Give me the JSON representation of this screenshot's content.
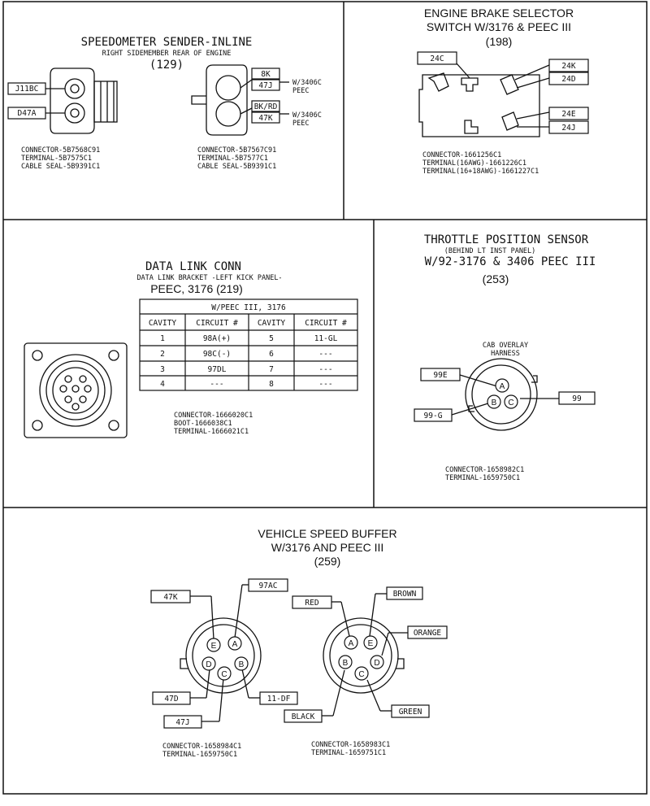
{
  "speedometer": {
    "title": "SPEEDOMETER SENDER-INLINE",
    "subtitle": "RIGHT SIDEMEMBER  REAR OF ENGINE",
    "ref": "(129)",
    "left_wires": [
      "J11BC",
      "D47A"
    ],
    "right_wires": [
      "8K",
      "47J",
      "BK/RD",
      "47K"
    ],
    "note1": "W/3406C",
    "note1b": "PEEC",
    "note2": "W/3406C",
    "note2b": "PEEC",
    "left_parts": [
      "CONNECTOR-5B7568C91",
      "TERMINAL-5B7575C1",
      "CABLE SEAL-5B9391C1"
    ],
    "right_parts": [
      "CONNECTOR-5B7567C91",
      "TERMINAL-5B7577C1",
      "CABLE SEAL-5B9391C1"
    ]
  },
  "engine_brake": {
    "title1": "ENGINE BRAKE SELECTOR",
    "title2": "SWITCH W/3176 & PEEC III",
    "ref": "(198)",
    "wires": [
      "24C",
      "24K",
      "24D",
      "24E",
      "24J"
    ],
    "parts": [
      "CONNECTOR-1661256C1",
      "TERMINAL(16AWG)-1661226C1",
      "TERMINAL(16+18AWG)-1661227C1"
    ]
  },
  "data_link": {
    "title": "DATA LINK CONN",
    "subtitle": "DATA LINK BRACKET -LEFT KICK PANEL-",
    "ref": "PEEC, 3176 (219)",
    "table_title": "W/PEEC III, 3176",
    "headers": [
      "CAVITY",
      "CIRCUIT #",
      "CAVITY",
      "CIRCUIT #"
    ],
    "rows": [
      [
        "1",
        "98A(+)",
        "5",
        "11-GL"
      ],
      [
        "2",
        "98C(-)",
        "6",
        "---"
      ],
      [
        "3",
        "97DL",
        "7",
        "---"
      ],
      [
        "4",
        "---",
        "8",
        "---"
      ]
    ],
    "parts": [
      "CONNECTOR-1666020C1",
      "BOOT-1666038C1",
      "TERMINAL-1666021C1"
    ]
  },
  "throttle": {
    "title": "THROTTLE POSITION SENSOR",
    "subtitle": "(BEHIND LT INST PANEL)",
    "title2": "W/92-3176 & 3406 PEEC III",
    "ref": "(253)",
    "harness1": "CAB OVERLAY",
    "harness2": "HARNESS",
    "wires": [
      "99E",
      "99",
      "99-G"
    ],
    "pins": [
      "A",
      "B",
      "C"
    ],
    "parts": [
      "CONNECTOR-1658982C1",
      "TERMINAL-1659750C1"
    ]
  },
  "vehicle_speed": {
    "title1": "VEHICLE SPEED BUFFER",
    "title2": "W/3176 AND PEEC III",
    "ref": "(259)",
    "left_wires": [
      "47K",
      "97AC",
      "47D",
      "11-DF",
      "47J"
    ],
    "right_wires": [
      "RED",
      "BROWN",
      "ORANGE",
      "BLACK",
      "GREEN"
    ],
    "pins": [
      "A",
      "B",
      "C",
      "D",
      "E"
    ],
    "left_parts": [
      "CONNECTOR-1658984C1",
      "TERMINAL-1659750C1"
    ],
    "right_parts": [
      "CONNECTOR-1658983C1",
      "TERMINAL-1659751C1"
    ]
  }
}
